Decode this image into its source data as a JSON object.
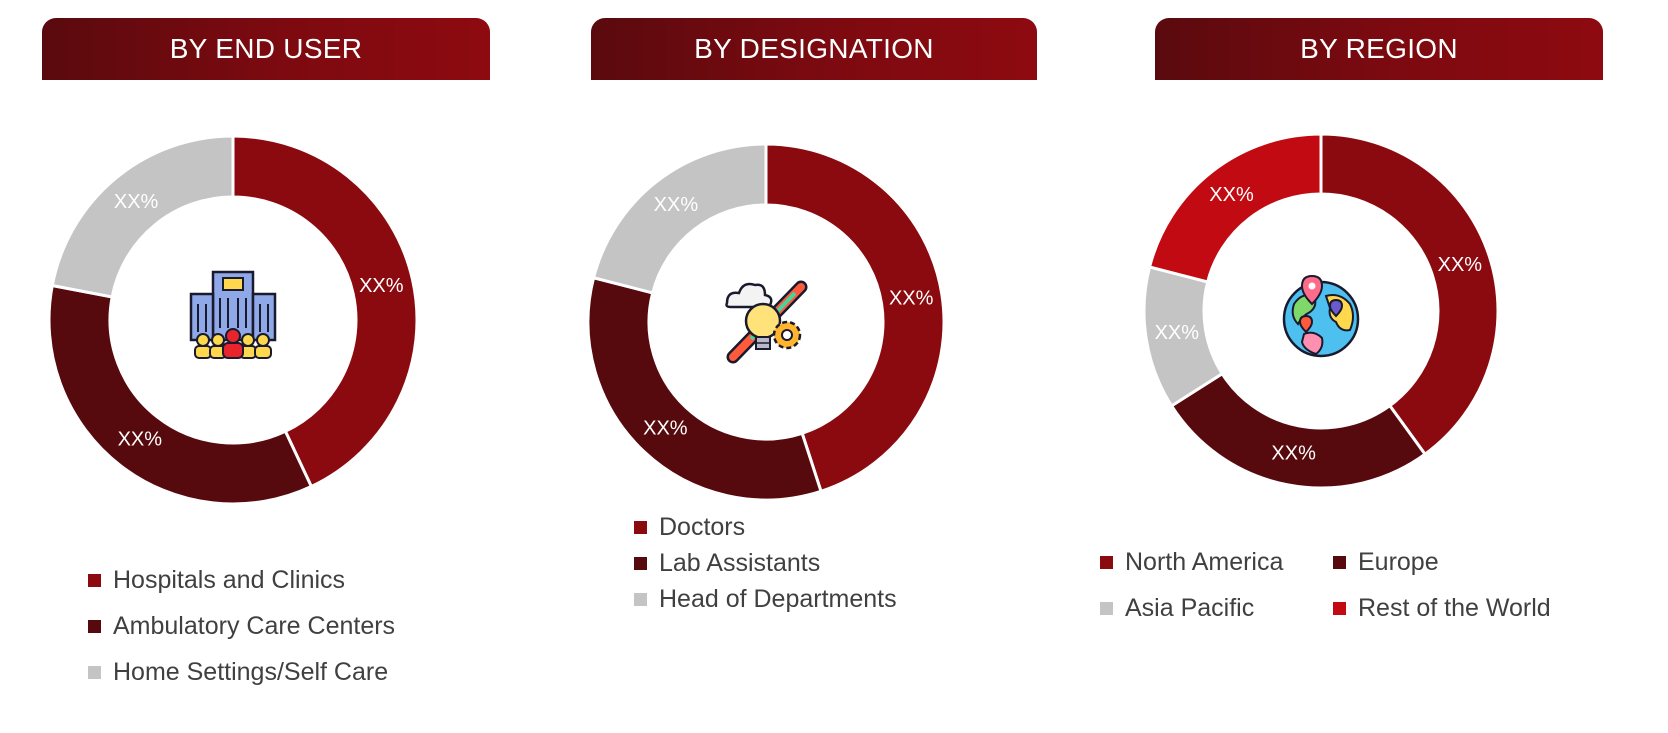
{
  "colors": {
    "dark_red": "#8b0a10",
    "maroon": "#570a0e",
    "gray": "#c4c4c4",
    "bright_red": "#c20a12",
    "header_start": "#5a0a0e",
    "header_end": "#8d0a10"
  },
  "chart_data": [
    {
      "type": "donut",
      "title": "BY END USER",
      "center_icon": "hospital-people-icon",
      "series": [
        {
          "name": "Hospitals and Clinics",
          "value": 43,
          "label": "XX%",
          "color": "#8b0a10"
        },
        {
          "name": "Ambulatory Care Centers",
          "value": 35,
          "label": "XX%",
          "color": "#570a0e"
        },
        {
          "name": "Home Settings/Self Care",
          "value": 22,
          "label": "XX%",
          "color": "#c4c4c4"
        }
      ]
    },
    {
      "type": "donut",
      "title": "BY DESIGNATION",
      "center_icon": "idea-tools-icon",
      "series": [
        {
          "name": "Doctors",
          "value": 45,
          "label": "XX%",
          "color": "#8b0a10"
        },
        {
          "name": "Lab Assistants",
          "value": 34,
          "label": "XX%",
          "color": "#570a0e"
        },
        {
          "name": "Head of Departments",
          "value": 21,
          "label": "XX%",
          "color": "#c4c4c4"
        }
      ]
    },
    {
      "type": "donut",
      "title": "BY REGION",
      "center_icon": "globe-pins-icon",
      "series": [
        {
          "name": "North America",
          "value": 40,
          "label": "XX%",
          "color": "#8b0a10"
        },
        {
          "name": "Europe",
          "value": 26,
          "label": "XX%",
          "color": "#570a0e"
        },
        {
          "name": "Asia Pacific",
          "value": 13,
          "label": "XX%",
          "color": "#c4c4c4"
        },
        {
          "name": "Rest of the World",
          "value": 21,
          "label": "XX%",
          "color": "#c20a12"
        }
      ]
    }
  ]
}
